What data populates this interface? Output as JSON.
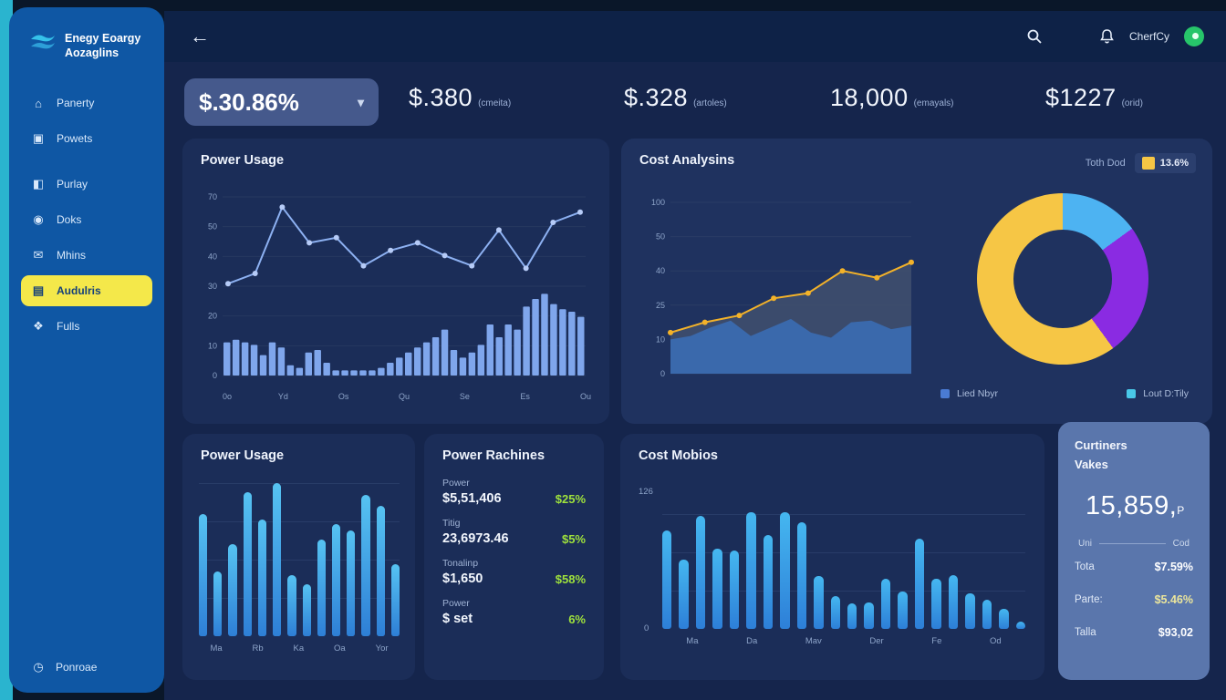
{
  "app": {
    "logo_line1": "Enegy Eoargy",
    "logo_line2": "Aozaglins"
  },
  "colors": {
    "accent_teal": "#2ab4cf",
    "sidebar_blue": "#0f57a4",
    "active_yellow": "#f4e84a",
    "card_bg": "#1b2d58",
    "line_blue": "#8db1f2",
    "bar_blue": "#7fa6ec",
    "yellow": "#f6c645",
    "cyan": "#4db3f2",
    "purple": "#8a2be2",
    "green": "#9fe23c",
    "curtiners_bg": "#5a76ac"
  },
  "icons": {
    "back_arrow": "←",
    "chevron_down": "▾"
  },
  "sidebar": {
    "items": [
      {
        "label": "Panerty",
        "glyph": "⌂",
        "icon_name": "home-icon",
        "active": false,
        "group_gap": false
      },
      {
        "label": "Powets",
        "glyph": "▣",
        "icon_name": "lock-icon",
        "active": false,
        "group_gap": false
      },
      {
        "label": "Purlay",
        "glyph": "◧",
        "icon_name": "monitor-icon",
        "active": false,
        "group_gap": true
      },
      {
        "label": "Doks",
        "glyph": "◉",
        "icon_name": "user-icon",
        "active": false,
        "group_gap": false
      },
      {
        "label": "Mhins",
        "glyph": "✉",
        "icon_name": "book-icon",
        "active": false,
        "group_gap": false
      },
      {
        "label": "Audulris",
        "glyph": "▤",
        "icon_name": "chart-icon",
        "active": true,
        "group_gap": false
      },
      {
        "label": "Fulls",
        "glyph": "❖",
        "icon_name": "people-icon",
        "active": false,
        "group_gap": false
      }
    ],
    "footer": {
      "label": "Ponroae",
      "glyph": "◷",
      "icon_name": "clock-icon"
    }
  },
  "topbar": {
    "user_name": "CherfCy"
  },
  "kpis": {
    "chip_value": "$.30.86%",
    "items": [
      {
        "value": "$.380",
        "unit": "(cmeita)"
      },
      {
        "value": "$.328",
        "unit": "(artoles)"
      },
      {
        "value": "18,000",
        "unit": "(emayals)"
      },
      {
        "value": "$1227",
        "unit": "(orid)"
      }
    ]
  },
  "chart_data": [
    {
      "id": "power-usage-top",
      "type": "line+bar",
      "title": "Power Usage",
      "ymax": 70,
      "y_ticks": [
        "70",
        "50",
        "40",
        "30",
        "20",
        "10",
        "0"
      ],
      "x_ticks": [
        "0o",
        "Yd",
        "Os",
        "Qu",
        "Se",
        "Es",
        "Ou"
      ],
      "line_series": {
        "name": "usage-line",
        "color": "#8db1f2",
        "values": [
          36,
          40,
          66,
          52,
          54,
          43,
          49,
          52,
          47,
          43,
          57,
          42,
          60,
          64
        ]
      },
      "bar_series": {
        "name": "usage-bars",
        "color": "#7fa6ec",
        "values": [
          13,
          14,
          13,
          12,
          8,
          13,
          11,
          4,
          3,
          9,
          10,
          5,
          2,
          2,
          2,
          2,
          2,
          3,
          5,
          7,
          9,
          11,
          13,
          15,
          18,
          10,
          7,
          9,
          12,
          20,
          15,
          20,
          18,
          27,
          30,
          32,
          28,
          26,
          25,
          23
        ]
      }
    },
    {
      "id": "cost-analysins",
      "type": "area+line+donut",
      "title": "Cost Analysins",
      "badge": {
        "label": "Toth Dod",
        "value": "13.6%",
        "color": "#f6c645"
      },
      "ymax": 100,
      "y_ticks": [
        "100",
        "50",
        "40",
        "25",
        "10",
        "0"
      ],
      "line_series": {
        "name": "cost-line",
        "color": "#f3b229",
        "area_color": "#41506f",
        "values": [
          24,
          30,
          34,
          44,
          47,
          60,
          56,
          65
        ]
      },
      "area_series": {
        "name": "cost-area",
        "color": "#3a6ab0",
        "values": [
          20,
          22,
          27,
          31,
          22,
          27,
          32,
          24,
          21,
          30,
          31,
          26,
          28
        ]
      },
      "donut": {
        "slices": [
          {
            "label": "cyan-slice",
            "color": "#4db3f2",
            "pct": 15
          },
          {
            "label": "purple-slice",
            "color": "#8a2be2",
            "pct": 25
          },
          {
            "label": "yellow-slice",
            "color": "#f6c645",
            "pct": 60
          }
        ]
      },
      "legend": [
        {
          "label": "Lied Nbyr",
          "color": "#4a7bd4"
        },
        {
          "label": "Lout D:Tily",
          "color": "#49c8e8"
        }
      ]
    },
    {
      "id": "power-usage-bottom",
      "type": "bar",
      "title": "Power Usage",
      "x_ticks": [
        "Ma",
        "Rb",
        "Ka",
        "Oa",
        "Yor"
      ],
      "bar_gradient": [
        "#56c3f2",
        "#2e7fd6"
      ],
      "values": [
        80,
        42,
        60,
        94,
        76,
        100,
        40,
        34,
        63,
        73,
        69,
        92,
        85,
        47
      ]
    },
    {
      "id": "cost-mobios",
      "type": "bar",
      "title": "Cost Mobios",
      "y_ticks": [
        "126",
        "0"
      ],
      "x_ticks": [
        "Ma",
        "Da",
        "Mav",
        "Der",
        "Fe",
        "Od"
      ],
      "bar_gradient": [
        "#45b7f0",
        "#2d7fd8"
      ],
      "values": [
        78,
        55,
        90,
        64,
        62,
        93,
        75,
        93,
        85,
        42,
        26,
        20,
        21,
        40,
        30,
        72,
        40,
        43,
        28,
        23,
        16,
        6
      ]
    }
  ],
  "power_rachines": {
    "title": "Power Rachines",
    "rows": [
      {
        "label": "Power",
        "value": "$5,51,406",
        "pct": "$25%"
      },
      {
        "label": "Titig",
        "value": "23,6973.46",
        "pct": "$5%"
      },
      {
        "label": "Tonalinp",
        "value": "$1,650",
        "pct": "$58%"
      },
      {
        "label": "Power",
        "value": "$ set",
        "pct": "6%"
      }
    ]
  },
  "curtiners": {
    "title_line1": "Curtiners",
    "title_line2": "Vakes",
    "value": "15,859,",
    "suffix": "P",
    "col_left": "Uni",
    "col_right": "Cod",
    "rows": [
      {
        "label": "Tota",
        "value": "$7.59%",
        "tint": false
      },
      {
        "label": "Parte:",
        "value": "$5.46%",
        "tint": true
      },
      {
        "label": "Talla",
        "value": "$93,02",
        "tint": false
      }
    ]
  }
}
